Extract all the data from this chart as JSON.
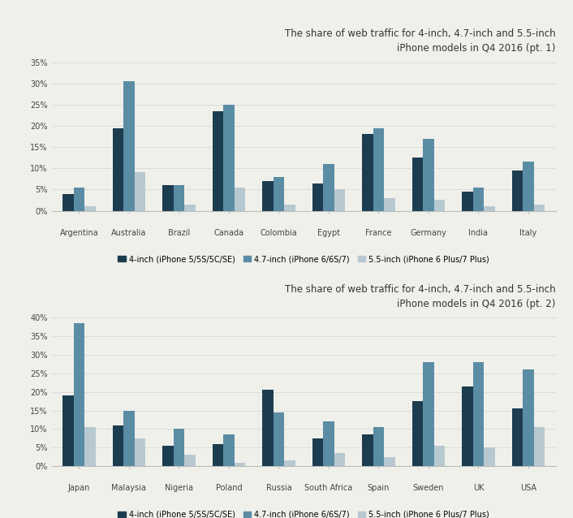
{
  "chart1": {
    "title": "The share of web traffic for 4-inch, 4.7-inch and 5.5-inch\niPhone models in Q4 2016 (pt. 1)",
    "categories": [
      "Argentina",
      "Australia",
      "Brazil",
      "Canada",
      "Colombia",
      "Egypt",
      "France",
      "Germany",
      "India",
      "Italy"
    ],
    "series_4inch": [
      4.0,
      19.5,
      6.0,
      23.5,
      7.0,
      6.5,
      18.0,
      12.5,
      4.5,
      9.5
    ],
    "series_47inch": [
      5.5,
      30.5,
      6.0,
      25.0,
      8.0,
      11.0,
      19.5,
      17.0,
      5.5,
      11.5
    ],
    "series_55inch": [
      1.0,
      9.0,
      1.5,
      5.5,
      1.5,
      5.0,
      3.0,
      2.5,
      1.0,
      1.5
    ],
    "ylim": [
      0,
      35
    ],
    "yticks": [
      0,
      5,
      10,
      15,
      20,
      25,
      30,
      35
    ]
  },
  "chart2": {
    "title": "The share of web traffic for 4-inch, 4.7-inch and 5.5-inch\niPhone models in Q4 2016 (pt. 2)",
    "categories": [
      "Japan",
      "Malaysia",
      "Nigeria",
      "Poland",
      "Russia",
      "South Africa",
      "Spain",
      "Sweden",
      "UK",
      "USA"
    ],
    "series_4inch": [
      19.0,
      11.0,
      5.5,
      6.0,
      20.5,
      7.5,
      8.5,
      17.5,
      21.5,
      15.5
    ],
    "series_47inch": [
      38.5,
      15.0,
      10.0,
      8.5,
      14.5,
      12.0,
      10.5,
      28.0,
      28.0,
      26.0
    ],
    "series_55inch": [
      10.5,
      7.5,
      3.0,
      1.0,
      1.5,
      3.5,
      2.5,
      5.5,
      5.0,
      10.5
    ],
    "ylim": [
      0,
      40
    ],
    "yticks": [
      0,
      5,
      10,
      15,
      20,
      25,
      30,
      35,
      40
    ]
  },
  "color_4inch": "#1c3d50",
  "color_47inch": "#5a8ca4",
  "color_55inch": "#b8c8d0",
  "legend_labels": [
    "4-inch (iPhone 5/5S/5C/SE)",
    "4.7-inch (iPhone 6/6S/7)",
    "5.5-inch (iPhone 6 Plus/7 Plus)"
  ],
  "background_color": "#f0f0eb",
  "bar_width": 0.22,
  "title_fontsize": 8.5,
  "axis_fontsize": 7.0,
  "legend_fontsize": 7.0,
  "tick_fontsize": 7.0,
  "grid_color": "#d8d8d8"
}
